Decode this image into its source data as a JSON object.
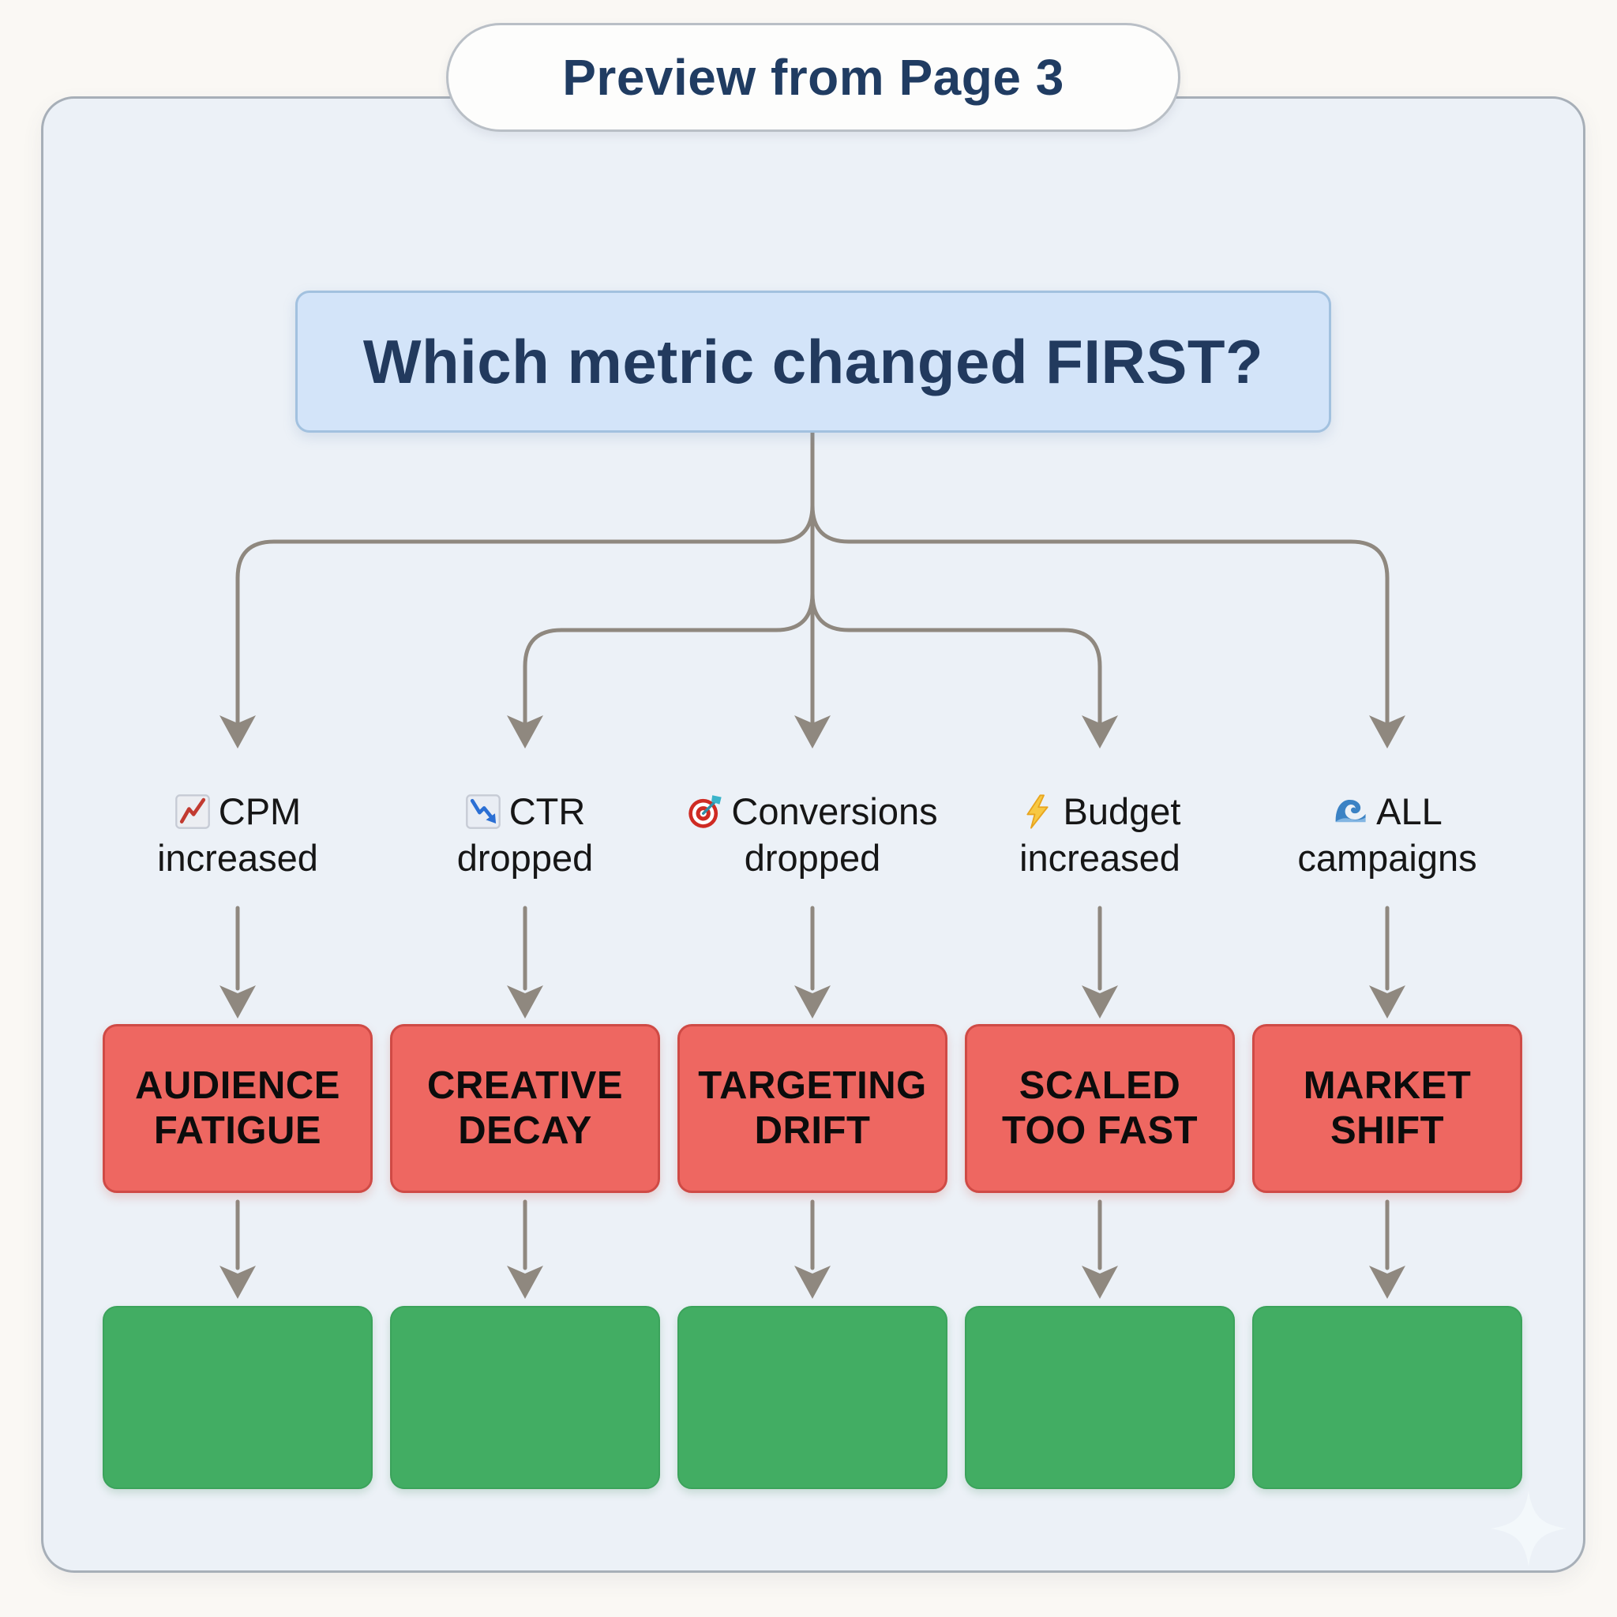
{
  "page": {
    "title": "Preview from Page 3"
  },
  "flowchart": {
    "question": "Which metric changed FIRST?",
    "columns": [
      {
        "icon": "chart-increasing-icon",
        "metric_lines": [
          "CPM",
          "increased"
        ],
        "cause_lines": [
          "AUDIENCE",
          "FATIGUE"
        ],
        "outcome": ""
      },
      {
        "icon": "chart-decreasing-icon",
        "metric_lines": [
          "CTR",
          "dropped"
        ],
        "cause_lines": [
          "CREATIVE",
          "DECAY"
        ],
        "outcome": ""
      },
      {
        "icon": "direct-hit-icon",
        "metric_lines": [
          "Conversions",
          "dropped"
        ],
        "cause_lines": [
          "TARGETING",
          "DRIFT"
        ],
        "outcome": ""
      },
      {
        "icon": "high-voltage-icon",
        "metric_lines": [
          "Budget",
          "increased"
        ],
        "cause_lines": [
          "SCALED",
          "TOO FAST"
        ],
        "outcome": ""
      },
      {
        "icon": "water-wave-icon",
        "metric_lines": [
          "ALL",
          "campaigns"
        ],
        "cause_lines": [
          "MARKET",
          "SHIFT"
        ],
        "outcome": ""
      }
    ],
    "colors": {
      "card_bg": "#ecf1f7",
      "question_bg": "#d3e4f9",
      "question_border": "#a2c1df",
      "cause_bg": "#ee6761",
      "cause_border": "#cf4a45",
      "outcome_bg": "#42ad63",
      "connector": "#8f887f",
      "title_text": "#203c62"
    }
  },
  "watermark": {
    "icon": "sparkle-icon"
  }
}
